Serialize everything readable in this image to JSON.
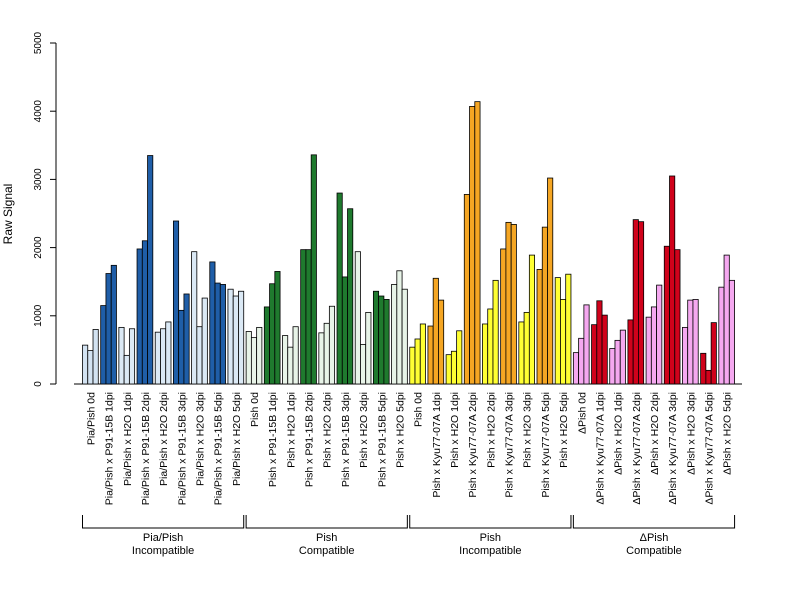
{
  "chart_data": {
    "type": "bar",
    "title": "",
    "xlabel": "",
    "ylabel": "Raw Signal",
    "ylim": [
      0,
      5000
    ],
    "yticks": [
      0,
      1000,
      2000,
      3000,
      4000,
      5000
    ],
    "grid": false,
    "legend": "none",
    "categories": [
      "Pia/Pish 0d",
      "Pia/Pish x P91-15B 1dpi",
      "Pia/Pish x H2O 1dpi",
      "Pia/Pish x P91-15B 2dpi",
      "Pia/Pish x H2O 2dpi",
      "Pia/Pish x P91-15B 3dpi",
      "Pia/Pish x H2O 3dpi",
      "Pia/Pish x P91-15B 5dpi",
      "Pia/Pish x H2O 5dpi",
      "Pish 0d",
      "Pish x P91-15B 1dpi",
      "Pish x H2O 1dpi",
      "Pish x P91-15B 2dpi",
      "Pish x H2O 2dpi",
      "Pish x P91-15B 3dpi",
      "Pish x H2O 3dpi",
      "Pish x P91-15B 5dpi",
      "Pish x H2O 5dpi",
      "Pish 0d",
      "Pish x Kyu77-07A 1dpi",
      "Pish x H2O 1dpi",
      "Pish x Kyu77-07A 2dpi",
      "Pish x H2O 2dpi",
      "Pish x Kyu77-07A 3dpi",
      "Pish x H2O 3dpi",
      "Pish x Kyu77-07A 5dpi",
      "Pish x H2O 5dpi",
      "ΔPish 0d",
      "ΔPish x Kyu77-07A 1dpi",
      "ΔPish x H2O 1dpi",
      "ΔPish x Kyu77-07A 2dpi",
      "ΔPish x H2O 2dpi",
      "ΔPish x Kyu77-07A 3dpi",
      "ΔPish x H2O 3dpi",
      "ΔPish x Kyu77-07A 5dpi",
      "ΔPish x H2O 5dpi"
    ],
    "values": [
      [
        570,
        490,
        800
      ],
      [
        1150,
        1620,
        1740
      ],
      [
        830,
        420,
        810
      ],
      [
        1980,
        2100,
        3350
      ],
      [
        760,
        810,
        910
      ],
      [
        2390,
        1080,
        1320
      ],
      [
        1940,
        840,
        1260
      ],
      [
        1790,
        1480,
        1460
      ],
      [
        1390,
        1290,
        1360
      ],
      [
        770,
        680,
        830
      ],
      [
        1130,
        1470,
        1650
      ],
      [
        710,
        540,
        840
      ],
      [
        1970,
        1970,
        3360
      ],
      [
        750,
        890,
        1140
      ],
      [
        2800,
        1570,
        2570
      ],
      [
        1940,
        580,
        1050
      ],
      [
        1360,
        1290,
        1240
      ],
      [
        1460,
        1660,
        1390
      ],
      [
        540,
        660,
        880
      ],
      [
        850,
        1550,
        1230
      ],
      [
        430,
        480,
        780
      ],
      [
        2780,
        4070,
        4140
      ],
      [
        880,
        1100,
        1520
      ],
      [
        1980,
        2370,
        2340
      ],
      [
        910,
        1050,
        1890
      ],
      [
        1680,
        2300,
        3020
      ],
      [
        1560,
        1240,
        1610
      ],
      [
        460,
        670,
        1160
      ],
      [
        870,
        1220,
        1010
      ],
      [
        520,
        640,
        790
      ],
      [
        940,
        2410,
        2380
      ],
      [
        980,
        1130,
        1450
      ],
      [
        2020,
        3050,
        1970
      ],
      [
        830,
        1230,
        1240
      ],
      [
        450,
        200,
        900
      ],
      [
        1420,
        1890,
        1520
      ]
    ],
    "bar_colors": [
      "#d3e3f2",
      "#1f5ea8",
      "#dbe9f5",
      "#1f5ea8",
      "#dbe9f5",
      "#1f5ea8",
      "#dbe9f5",
      "#1f5ea8",
      "#dbe9f5",
      "#e8f4e8",
      "#1f7a2e",
      "#e8f4e8",
      "#1f7a2e",
      "#e8f4e8",
      "#1f7a2e",
      "#e8f4e8",
      "#1f7a2e",
      "#e8f4e8",
      "#ffff33",
      "#f5a623",
      "#ffff33",
      "#f5a623",
      "#ffff33",
      "#f5a623",
      "#ffff33",
      "#f5a623",
      "#ffff33",
      "#f5a8f0",
      "#d0021b",
      "#f5a8f0",
      "#d0021b",
      "#f5a8f0",
      "#d0021b",
      "#f5a8f0",
      "#d0021b",
      "#f5a8f0"
    ],
    "groups": [
      {
        "line1": "Pia/Pish",
        "line2": "Incompatible",
        "start": 0,
        "end": 8
      },
      {
        "line1": "Pish",
        "line2": "Compatible",
        "start": 9,
        "end": 17
      },
      {
        "line1": "Pish",
        "line2": "Incompatible",
        "start": 18,
        "end": 26
      },
      {
        "line1": "ΔPish",
        "line2": "Compatible",
        "start": 27,
        "end": 35
      }
    ]
  }
}
